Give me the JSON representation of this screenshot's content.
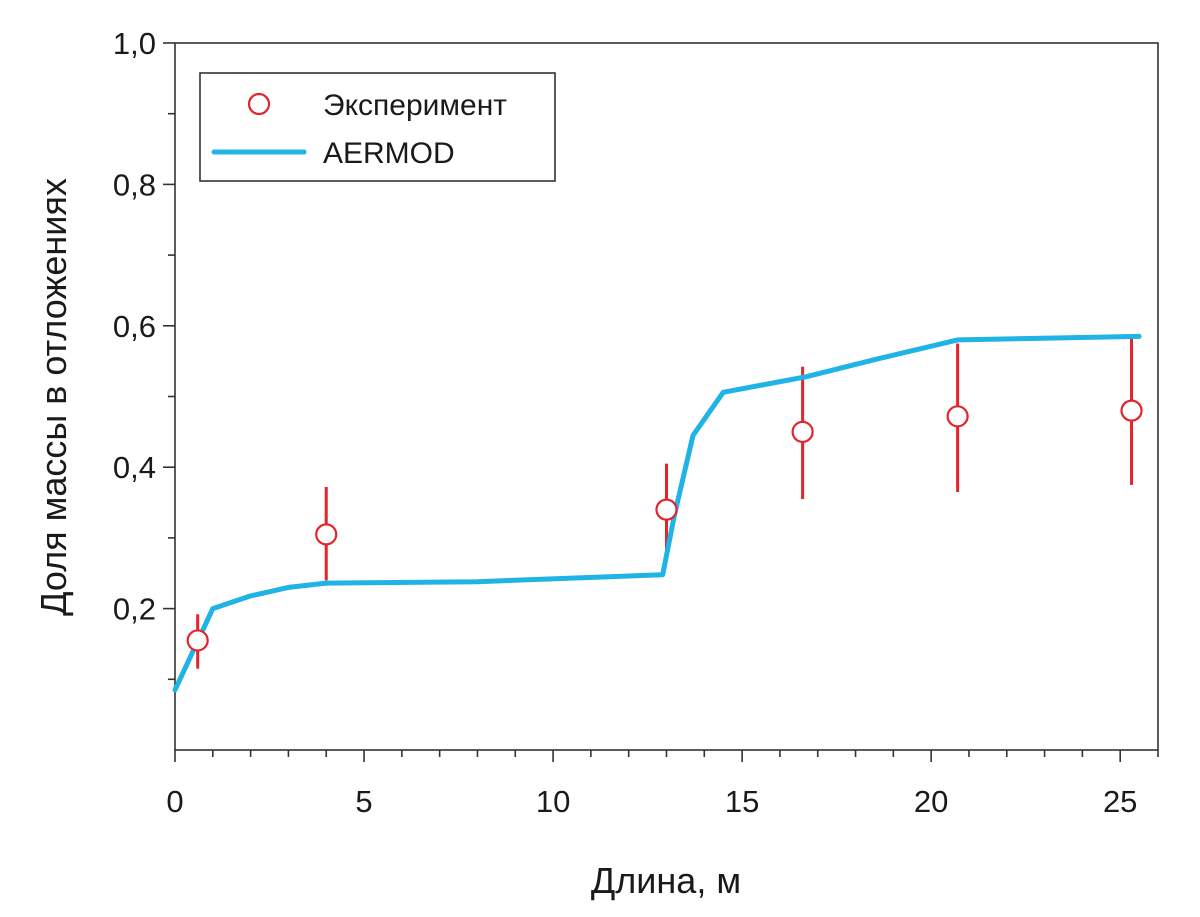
{
  "chart_data": {
    "type": "scatter",
    "xlabel": "Длина, м",
    "ylabel": "Доля массы в отложениях",
    "xlim": [
      0,
      26
    ],
    "ylim": [
      0.0,
      1.0
    ],
    "x_ticks": [
      {
        "value": 0,
        "label": "0"
      },
      {
        "value": 5,
        "label": "5"
      },
      {
        "value": 10,
        "label": "10"
      },
      {
        "value": 15,
        "label": "15"
      },
      {
        "value": 20,
        "label": "20"
      },
      {
        "value": 25,
        "label": "25"
      }
    ],
    "y_ticks": [
      {
        "value": 0.2,
        "label": "0,2"
      },
      {
        "value": 0.4,
        "label": "0,4"
      },
      {
        "value": 0.6,
        "label": "0,6"
      },
      {
        "value": 0.8,
        "label": "0,8"
      },
      {
        "value": 1.0,
        "label": "1,0"
      }
    ],
    "legend": {
      "position": "top-left",
      "entries": [
        {
          "label": "Эксперимент",
          "marker": "open-circle"
        },
        {
          "label": "AERMOD",
          "marker": "line"
        }
      ]
    },
    "series": [
      {
        "name": "Эксперимент",
        "kind": "scatter-errorbar",
        "color": "#e3242b",
        "points": [
          {
            "x": 0.6,
            "y": 0.155,
            "err_low": 0.115,
            "err_high": 0.192
          },
          {
            "x": 4.0,
            "y": 0.305,
            "err_low": 0.24,
            "err_high": 0.372
          },
          {
            "x": 13.0,
            "y": 0.34,
            "err_low": 0.275,
            "err_high": 0.405
          },
          {
            "x": 16.6,
            "y": 0.45,
            "err_low": 0.355,
            "err_high": 0.542
          },
          {
            "x": 20.7,
            "y": 0.472,
            "err_low": 0.365,
            "err_high": 0.575
          },
          {
            "x": 25.3,
            "y": 0.48,
            "err_low": 0.375,
            "err_high": 0.583
          }
        ]
      },
      {
        "name": "AERMOD",
        "kind": "line",
        "color": "#1fb3e6",
        "points": [
          {
            "x": 0.0,
            "y": 0.085
          },
          {
            "x": 1.0,
            "y": 0.2
          },
          {
            "x": 2.0,
            "y": 0.218
          },
          {
            "x": 3.0,
            "y": 0.23
          },
          {
            "x": 4.0,
            "y": 0.236
          },
          {
            "x": 8.0,
            "y": 0.238
          },
          {
            "x": 12.9,
            "y": 0.248
          },
          {
            "x": 13.2,
            "y": 0.33
          },
          {
            "x": 13.7,
            "y": 0.445
          },
          {
            "x": 14.5,
            "y": 0.506
          },
          {
            "x": 16.7,
            "y": 0.528
          },
          {
            "x": 18.5,
            "y": 0.552
          },
          {
            "x": 20.7,
            "y": 0.58
          },
          {
            "x": 25.5,
            "y": 0.585
          }
        ]
      }
    ]
  }
}
